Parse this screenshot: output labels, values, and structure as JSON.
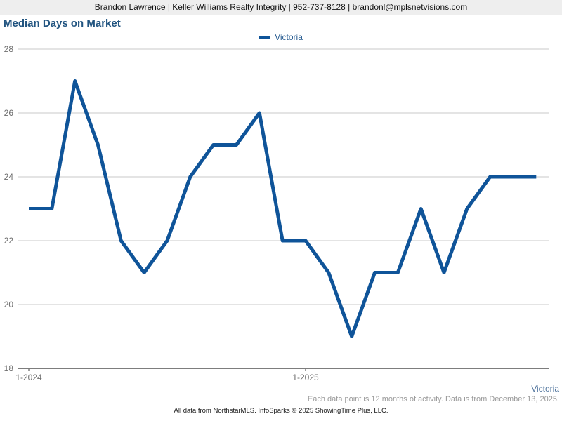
{
  "header": {
    "contact": "Brandon Lawrence | Keller Williams Realty Integrity | 952-737-8128 | brandonl@mplsnetvisions.com"
  },
  "colors": {
    "line": "#0f5499",
    "title": "#215480",
    "legend_text": "#2b5f93",
    "footer_series_text": "#54779f",
    "gridline": "#c9c9c9",
    "axis": "#7d7d7d",
    "tick_label": "#6f6f6f",
    "header_background": "#eeeeee"
  },
  "chart_data": {
    "type": "line",
    "title": "Median Days on Market",
    "x": [
      "1-2024",
      "2-2024",
      "3-2024",
      "4-2024",
      "5-2024",
      "6-2024",
      "7-2024",
      "8-2024",
      "9-2024",
      "10-2024",
      "11-2024",
      "12-2024",
      "1-2025",
      "2-2025",
      "3-2025",
      "4-2025",
      "5-2025",
      "6-2025",
      "7-2025",
      "8-2025",
      "9-2025",
      "10-2025",
      "11-2025"
    ],
    "series": [
      {
        "name": "Victoria",
        "color": "#0f5499",
        "values": [
          23,
          23,
          27,
          25,
          22,
          21,
          22,
          24,
          25,
          25,
          26,
          22,
          22,
          21,
          19,
          21,
          21,
          23,
          21,
          23,
          24,
          24,
          24
        ]
      }
    ],
    "ylim": [
      18,
      28
    ],
    "yticks": [
      18,
      20,
      22,
      24,
      26,
      28
    ],
    "xtick_labels": [
      {
        "label": "1-2024",
        "index": 0
      },
      {
        "label": "1-2025",
        "index": 12
      }
    ],
    "grid": true,
    "legend_position": "top-center"
  },
  "footer": {
    "series_label": "Victoria",
    "activity_note": "Each data point is 12 months of activity. Data is from December 13, 2025.",
    "attribution": "All data from NorthstarMLS. InfoSparks © 2025 ShowingTime Plus, LLC."
  }
}
